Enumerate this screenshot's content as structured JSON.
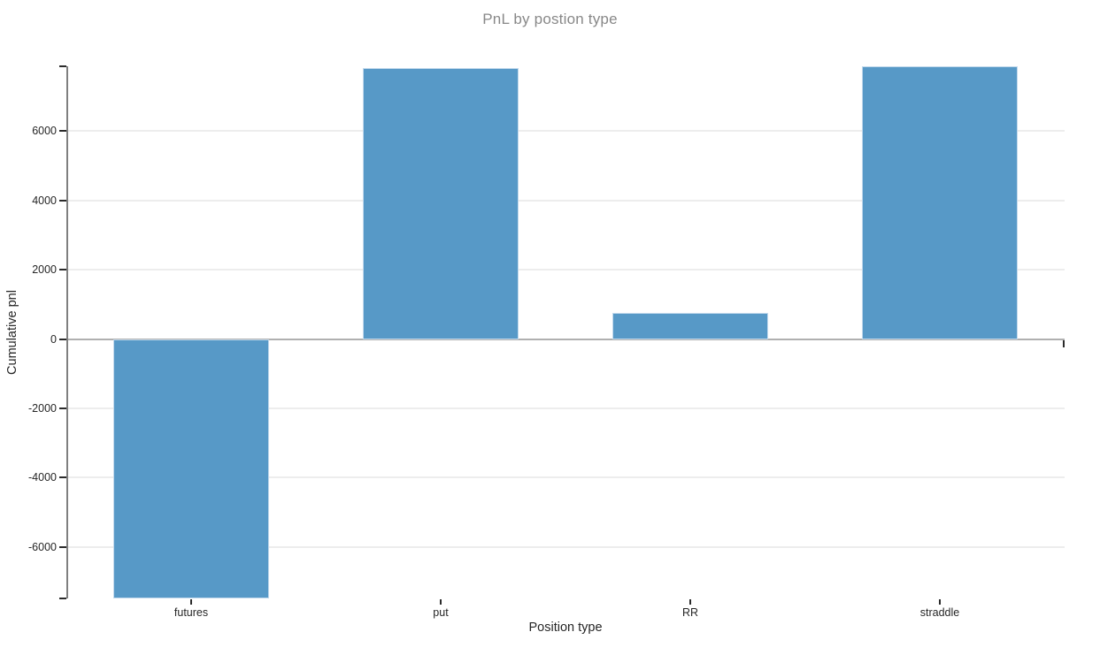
{
  "chart_data": {
    "type": "bar",
    "title": "PnL by postion type",
    "xlabel": "Position type",
    "ylabel": "Cumulative pnl",
    "categories": [
      "futures",
      "put",
      "RR",
      "straddle"
    ],
    "values": [
      -7490,
      7820,
      745,
      7875
    ],
    "ylim": [
      -7490,
      7875
    ],
    "yticks": [
      -6000,
      -4000,
      -2000,
      0,
      2000,
      4000,
      6000
    ],
    "grid": "horizontal",
    "zero_line": true,
    "legend_position": "none",
    "colors": {
      "bar_fill": "#5799c7",
      "bar_edge": "#c2d9ec",
      "grid_line": "#ededed",
      "zero_line": "#b0b0b0",
      "axis_line": "#7f7f7f",
      "tick_mark": "#2b2b2b",
      "tick_label": "#262626",
      "title_text": "#888888",
      "axis_title_text": "#262626",
      "background": "#ffffff"
    }
  }
}
